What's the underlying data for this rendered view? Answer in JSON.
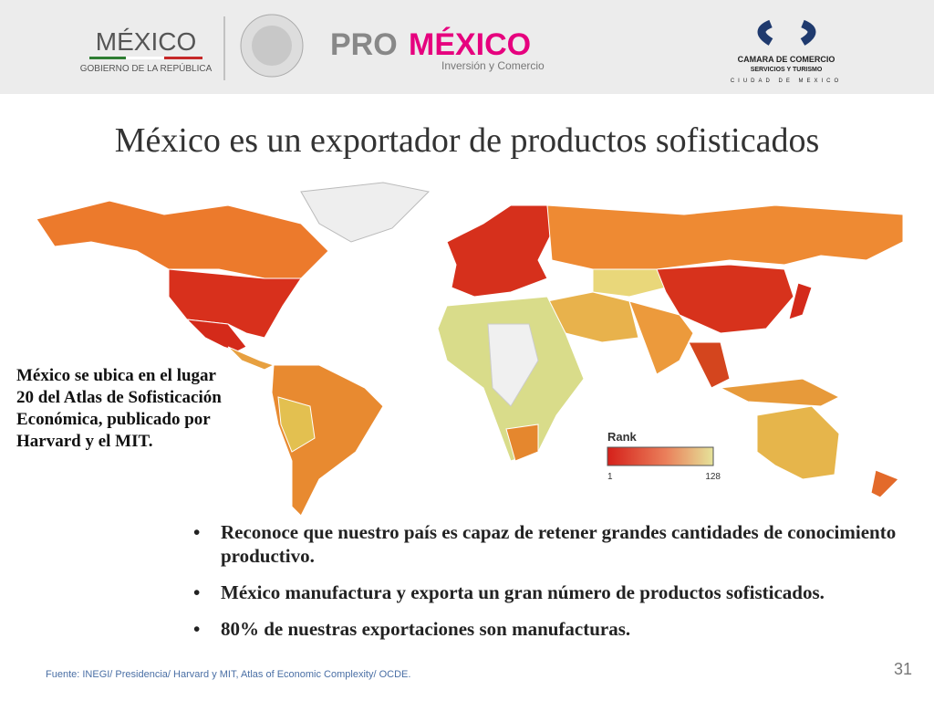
{
  "header": {
    "logo_mexico": {
      "name": "MÉXICO",
      "subtitle": "GOBIERNO DE LA REPÚBLICA"
    },
    "logo_promexico": {
      "pro": "PRO",
      "mexico": "MÉXICO",
      "tagline": "Inversión y Comercio"
    },
    "logo_camara": {
      "name": "CAMARA DE COMERCIO",
      "line2": "SERVICIOS Y TURISMO",
      "line3": "CIUDAD DE MEXICO"
    }
  },
  "title": "México es un exportador de productos sofisticados",
  "side_note": "México se ubica en el lugar 20 del Atlas de Sofisticación Económica, publicado por Harvard y el MIT.",
  "legend": {
    "title": "Rank",
    "min": "1",
    "max": "128"
  },
  "bullets": [
    "Reconoce que nuestro país es capaz de retener grandes cantidades de conocimiento productivo.",
    "México manufactura y exporta un gran número de productos sofisticados.",
    "80% de nuestras exportaciones son manufacturas."
  ],
  "source": "Fuente: INEGI/ Presidencia/ Harvard y MIT, Atlas of Economic Complexity/ OCDE.",
  "page_number": "31"
}
